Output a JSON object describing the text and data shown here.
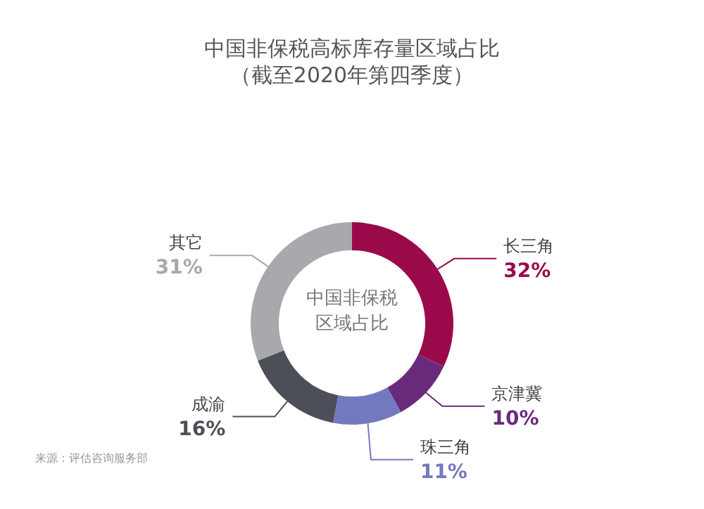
{
  "chart_data": {
    "type": "donut",
    "title": "中国非保税高标库存量区域占比",
    "subtitle": "（截至2020年第四季度）",
    "categories": [
      "长三角",
      "京津冀",
      "珠三角",
      "成渝",
      "其它"
    ],
    "values": [
      32,
      10,
      11,
      16,
      31
    ],
    "colors": [
      "#9a0a4b",
      "#6a2a7c",
      "#7379bf",
      "#4c4f57",
      "#a7a9ac"
    ],
    "value_labels": [
      "32%",
      "10%",
      "11%",
      "16%",
      "31%"
    ],
    "annotations": [
      "中国非保税",
      "区域占比",
      "来源：评估咨询服务部"
    ],
    "legend": false
  }
}
